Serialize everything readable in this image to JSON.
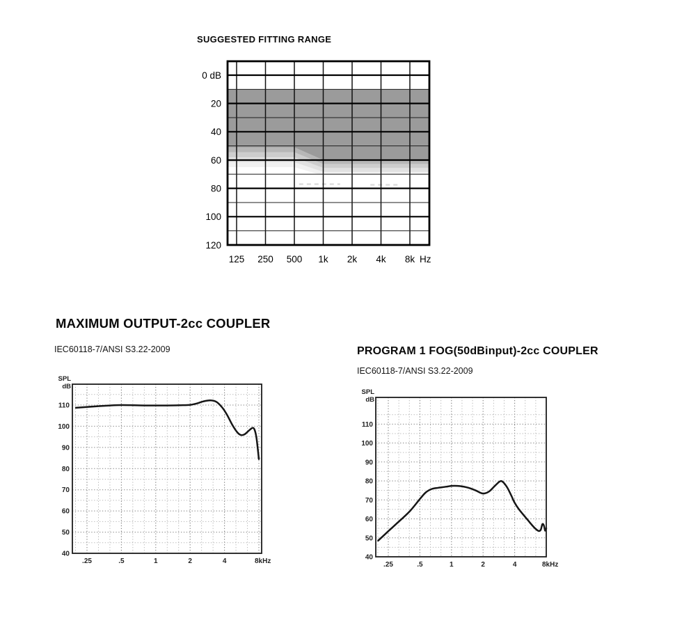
{
  "page": {
    "background": "#ffffff"
  },
  "chart_data": [
    {
      "name": "suggested-fitting-range",
      "type": "area",
      "title": "SUGGESTED FITTING RANGE",
      "x_unit": "Hz",
      "x_tick_labels": [
        "125",
        "250",
        "500",
        "1k",
        "2k",
        "4k",
        "8k"
      ],
      "x_ticks_khz": [
        0.125,
        0.25,
        0.5,
        1,
        2,
        4,
        8
      ],
      "y_tick_labels": [
        "0 dB",
        "20",
        "40",
        "60",
        "80",
        "100",
        "120"
      ],
      "y_major_db": [
        0,
        20,
        40,
        60,
        80,
        100,
        120
      ],
      "y_minor_db": [
        10,
        30,
        50,
        70,
        90,
        110
      ],
      "ylim_db": [
        -10,
        120
      ],
      "y_axis_down": true,
      "grid": "solid",
      "region": {
        "description": "Gray suggested fitting range band starting at 10 dB HL, fading out around 51-65 dB HL below 500 Hz and 60-71 dB HL above 1 kHz, sloped transition between 500 Hz and 1 kHz",
        "fill_color": "#9b9b9b",
        "top_db": 10,
        "fade_transition_khz": [
          0.5,
          1
        ],
        "bands": [
          {
            "left_db": 51,
            "right_db": 60,
            "alpha": 1
          },
          {
            "left_db": 54.5,
            "right_db": 62.8,
            "alpha": 0.72
          },
          {
            "left_db": 58,
            "right_db": 65.5,
            "alpha": 0.5
          },
          {
            "left_db": 61.5,
            "right_db": 68.3,
            "alpha": 0.3
          },
          {
            "left_db": 65,
            "right_db": 71,
            "alpha": 0.14
          }
        ]
      },
      "faint_marks": [
        {
          "khz_start": 0.56,
          "khz_end": 1.5,
          "db": 77
        },
        {
          "khz_start": 3.1,
          "khz_end": 6,
          "db": 77.5
        }
      ]
    },
    {
      "name": "maximum-output-2cc",
      "type": "line",
      "title": "MAXIMUM OUTPUT-2cc COUPLER",
      "subtitle": "IEC60118-7/ANSI S3.22-2009",
      "y_axis_label_lines": [
        "SPL",
        "dB"
      ],
      "x_tick_labels": [
        ".25",
        ".5",
        "1",
        "2",
        "4",
        "8kHz"
      ],
      "x_ticks_khz": [
        0.25,
        0.5,
        1,
        2,
        4,
        8
      ],
      "y_tick_labels": [
        "110",
        "100",
        "90",
        "80",
        "70",
        "60",
        "50",
        "40"
      ],
      "y_ticks_db": [
        110,
        100,
        90,
        80,
        70,
        60,
        50,
        40
      ],
      "ylim_db": [
        40,
        120
      ],
      "xscale": "log",
      "grid": "dotted",
      "series": [
        {
          "name": "maximum output curve",
          "color": "#161616",
          "points": [
            [
              0.2,
              108.7
            ],
            [
              0.25,
              109.1
            ],
            [
              0.32,
              109.5
            ],
            [
              0.4,
              109.8
            ],
            [
              0.5,
              110
            ],
            [
              0.65,
              109.9
            ],
            [
              0.8,
              109.8
            ],
            [
              1,
              109.8
            ],
            [
              1.25,
              109.8
            ],
            [
              1.6,
              109.9
            ],
            [
              2,
              110.1
            ],
            [
              2.3,
              110.8
            ],
            [
              2.6,
              111.7
            ],
            [
              3,
              112.2
            ],
            [
              3.4,
              111.5
            ],
            [
              3.8,
              109
            ],
            [
              4.2,
              105.5
            ],
            [
              4.7,
              100.5
            ],
            [
              5.2,
              97
            ],
            [
              5.6,
              95.8
            ],
            [
              6,
              96.2
            ],
            [
              6.5,
              97.8
            ],
            [
              7,
              99.2
            ],
            [
              7.3,
              98.6
            ],
            [
              7.6,
              95
            ],
            [
              7.8,
              90
            ],
            [
              8,
              84.5
            ]
          ]
        }
      ]
    },
    {
      "name": "program1-fog-50db-input",
      "type": "line",
      "title": "PROGRAM 1 FOG(50dBinput)-2cc COUPLER",
      "subtitle": "IEC60118-7/ANSI S3.22-2009",
      "y_axis_label_lines": [
        "SPL",
        "dB"
      ],
      "x_tick_labels": [
        ".25",
        ".5",
        "1",
        "2",
        "4",
        "8kHz"
      ],
      "x_ticks_khz": [
        0.25,
        0.5,
        1,
        2,
        4,
        8
      ],
      "y_tick_labels": [
        "110",
        "100",
        "90",
        "80",
        "70",
        "60",
        "50",
        "40"
      ],
      "y_ticks_db": [
        110,
        100,
        90,
        80,
        70,
        60,
        50,
        40
      ],
      "ylim_db": [
        40,
        122
      ],
      "xscale": "log",
      "grid": "dotted",
      "series": [
        {
          "name": "full-on gain 50 dB input curve",
          "color": "#161616",
          "points": [
            [
              0.2,
              48.5
            ],
            [
              0.25,
              53.5
            ],
            [
              0.3,
              57.5
            ],
            [
              0.4,
              64
            ],
            [
              0.5,
              70.5
            ],
            [
              0.57,
              74
            ],
            [
              0.65,
              75.8
            ],
            [
              0.75,
              76.4
            ],
            [
              0.9,
              77
            ],
            [
              1,
              77.4
            ],
            [
              1.2,
              77.3
            ],
            [
              1.45,
              76.4
            ],
            [
              1.7,
              75
            ],
            [
              1.9,
              73.7
            ],
            [
              2.05,
              73.4
            ],
            [
              2.3,
              74.6
            ],
            [
              2.6,
              77.5
            ],
            [
              2.9,
              79.8
            ],
            [
              3.1,
              79.4
            ],
            [
              3.4,
              76.5
            ],
            [
              3.7,
              72.5
            ],
            [
              4,
              68.5
            ],
            [
              4.4,
              65
            ],
            [
              4.9,
              61.8
            ],
            [
              5.4,
              59
            ],
            [
              5.9,
              56.5
            ],
            [
              6.4,
              54.5
            ],
            [
              6.8,
              53.6
            ],
            [
              7.1,
              54.3
            ],
            [
              7.35,
              57.2
            ],
            [
              7.6,
              56.5
            ],
            [
              7.8,
              53.8
            ],
            [
              8,
              55
            ]
          ]
        }
      ]
    }
  ]
}
